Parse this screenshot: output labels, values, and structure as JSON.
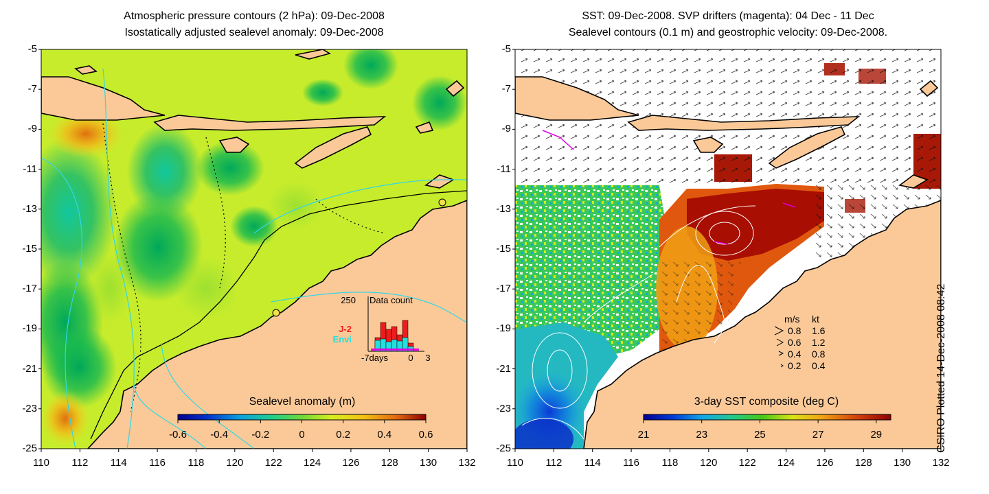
{
  "left_panel": {
    "title_line1": "Atmospheric pressure contours (2 hPa): 09-Dec-2008",
    "title_line2": "Isostatically adjusted sealevel anomaly: 09-Dec-2008",
    "colorbar": {
      "label": "Sealevel anomaly (m)",
      "ticks": [
        "-0.6",
        "-0.4",
        "-0.2",
        "0",
        "0.2",
        "0.4",
        "0.6"
      ],
      "range": [
        -0.6,
        0.6
      ]
    },
    "data_count": {
      "ytick": "250",
      "title": "Data count",
      "series": [
        {
          "name": "J-2",
          "color": "#ee1c1c"
        },
        {
          "name": "Envi",
          "color": "#22e0e0"
        }
      ],
      "xticks": [
        "-7days",
        "0",
        "3"
      ]
    },
    "markers": [
      "yellow-circle-13S-131E",
      "yellow-circle-18S-122E"
    ]
  },
  "right_panel": {
    "title_line1": "SST: 09-Dec-2008. SVP drifters (magenta): 04 Dec - 11 Dec",
    "title_line2": "Sealevel contours (0.1 m) and geostrophic velocity: 09-Dec-2008.",
    "colorbar": {
      "label": "3-day SST composite (deg C)",
      "ticks": [
        "21",
        "23",
        "25",
        "27",
        "29"
      ],
      "range": [
        21,
        29.5
      ]
    },
    "velocity_legend": {
      "headers": [
        "m/s",
        "kt"
      ],
      "rows": [
        {
          "ms": "0.8",
          "kt": "1.6"
        },
        {
          "ms": "0.6",
          "kt": "1.2"
        },
        {
          "ms": "0.4",
          "kt": "0.8"
        },
        {
          "ms": "0.2",
          "kt": "0.4"
        }
      ]
    }
  },
  "axes": {
    "lat_labels": [
      "-5",
      "-7",
      "-9",
      "-11",
      "-13",
      "-15",
      "-17",
      "-19",
      "-21",
      "-23",
      "-25"
    ],
    "lon_labels": [
      "110",
      "112",
      "114",
      "116",
      "118",
      "120",
      "122",
      "124",
      "126",
      "128",
      "130",
      "132"
    ],
    "lat_range": [
      -25,
      -5
    ],
    "lon_range": [
      110,
      132
    ]
  },
  "credit": "CSIRO Plotted 14-Dec-2008 08:42",
  "colors": {
    "land": "#fbc998",
    "sla_low": "#009a5a",
    "sla_mid": "#cdf52a",
    "sla_high": "#d66a10",
    "contour": "#33d6e6",
    "drifter": "#e000e0"
  }
}
